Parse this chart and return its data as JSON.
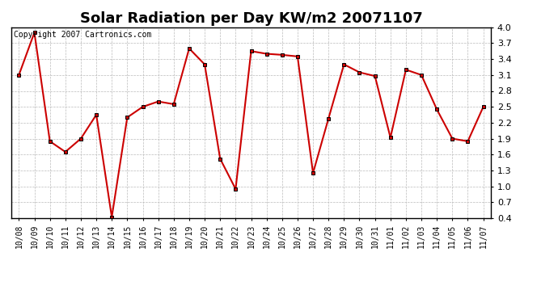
{
  "title": "Solar Radiation per Day KW/m2 20071107",
  "copyright_text": "Copyright 2007 Cartronics.com",
  "x_labels": [
    "10/08",
    "10/09",
    "10/10",
    "10/11",
    "10/12",
    "10/13",
    "10/14",
    "10/15",
    "10/16",
    "10/17",
    "10/18",
    "10/19",
    "10/20",
    "10/21",
    "10/22",
    "10/23",
    "10/24",
    "10/25",
    "10/26",
    "10/27",
    "10/28",
    "10/29",
    "10/30",
    "10/31",
    "11/01",
    "11/02",
    "11/03",
    "11/04",
    "11/05",
    "11/06",
    "11/07"
  ],
  "y_values": [
    3.1,
    3.9,
    1.85,
    1.65,
    1.9,
    2.35,
    0.42,
    2.3,
    2.5,
    2.6,
    2.55,
    3.6,
    3.3,
    1.52,
    0.95,
    3.55,
    3.5,
    3.48,
    3.45,
    1.25,
    2.28,
    3.3,
    3.15,
    3.08,
    1.92,
    3.2,
    3.1,
    2.45,
    1.9,
    1.85,
    2.5
  ],
  "line_color": "#cc0000",
  "marker_color": "#000000",
  "background_color": "#ffffff",
  "grid_color": "#bbbbbb",
  "ylim": [
    0.4,
    4.0
  ],
  "yticks": [
    0.4,
    0.7,
    1.0,
    1.3,
    1.6,
    1.9,
    2.2,
    2.5,
    2.8,
    3.1,
    3.4,
    3.7,
    4.0
  ],
  "title_fontsize": 13,
  "copyright_fontsize": 7,
  "tick_fontsize": 7,
  "ytick_fontsize": 8
}
